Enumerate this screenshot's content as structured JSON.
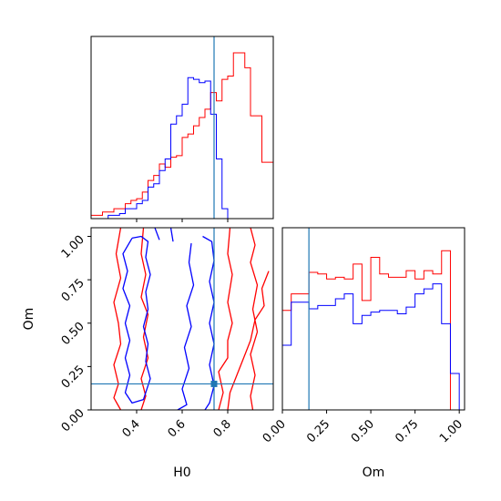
{
  "colors": {
    "series_a": "#ff0000",
    "series_b": "#0000ff",
    "truth": "#1f77b4",
    "frame": "#000000"
  },
  "chart_data": [
    {
      "type": "histogram",
      "panel": "H0 marginal (top-left)",
      "xlim": [
        0.2,
        1.0
      ],
      "x_ticks": [
        0.4,
        0.6,
        0.8
      ],
      "show_x_tick_labels": false,
      "show_y_ticks": false,
      "bin_edges": [
        0.2,
        0.225,
        0.25,
        0.275,
        0.3,
        0.325,
        0.35,
        0.375,
        0.4,
        0.425,
        0.45,
        0.475,
        0.5,
        0.525,
        0.55,
        0.575,
        0.6,
        0.625,
        0.65,
        0.675,
        0.7,
        0.725,
        0.75,
        0.775,
        0.8,
        0.825,
        0.85,
        0.875,
        0.9,
        0.925,
        0.95,
        0.975,
        1.0
      ],
      "series": [
        {
          "color": "#ff0000",
          "values": [
            0.02,
            0.02,
            0.04,
            0.04,
            0.06,
            0.06,
            0.09,
            0.11,
            0.12,
            0.16,
            0.23,
            0.26,
            0.33,
            0.31,
            0.37,
            0.38,
            0.49,
            0.51,
            0.56,
            0.61,
            0.66,
            0.76,
            0.71,
            0.84,
            0.86,
            1.0,
            1.0,
            0.91,
            0.62,
            0.62,
            0.34,
            0.34
          ]
        },
        {
          "color": "#0000ff",
          "values": [
            0.0,
            0.0,
            0.0,
            0.02,
            0.02,
            0.03,
            0.06,
            0.06,
            0.09,
            0.11,
            0.19,
            0.21,
            0.29,
            0.36,
            0.57,
            0.62,
            0.69,
            0.85,
            0.84,
            0.82,
            0.83,
            0.63,
            0.36,
            0.06,
            0.0,
            0.0,
            0.0,
            0.0,
            0.0,
            0.0,
            0.0,
            0.0
          ]
        }
      ],
      "truth_x": 0.74
    },
    {
      "type": "contour",
      "panel": "H0 vs Om (bottom-left)",
      "xlabel": "H0",
      "ylabel": "Om",
      "xlim": [
        0.2,
        1.0
      ],
      "ylim": [
        0.0,
        1.05
      ],
      "x_ticks": [
        0.4,
        0.6,
        0.8
      ],
      "x_tick_labels": [
        "0.4",
        "0.6",
        "0.8"
      ],
      "y_ticks": [
        0.0,
        0.25,
        0.5,
        0.75,
        1.0
      ],
      "y_tick_labels": [
        "0.00",
        "0.25",
        "0.50",
        "0.75",
        "1.00"
      ],
      "series": [
        {
          "color": "#ff0000",
          "contours": [
            [
              [
                0.33,
                1.05
              ],
              [
                0.31,
                0.9
              ],
              [
                0.33,
                0.76
              ],
              [
                0.3,
                0.62
              ],
              [
                0.32,
                0.5
              ],
              [
                0.33,
                0.38
              ],
              [
                0.3,
                0.26
              ],
              [
                0.32,
                0.15
              ],
              [
                0.3,
                0.07
              ],
              [
                0.33,
                0.0
              ]
            ],
            [
              [
                0.9,
                1.05
              ],
              [
                0.92,
                0.95
              ],
              [
                0.9,
                0.85
              ],
              [
                0.93,
                0.72
              ],
              [
                0.91,
                0.58
              ],
              [
                0.93,
                0.45
              ],
              [
                0.9,
                0.32
              ],
              [
                0.92,
                0.2
              ],
              [
                0.9,
                0.08
              ],
              [
                0.91,
                0.0
              ]
            ],
            [
              [
                0.81,
                1.05
              ],
              [
                0.8,
                0.9
              ],
              [
                0.82,
                0.78
              ],
              [
                0.8,
                0.62
              ],
              [
                0.82,
                0.5
              ],
              [
                0.8,
                0.4
              ],
              [
                0.8,
                0.3
              ],
              [
                0.76,
                0.22
              ],
              [
                0.78,
                0.1
              ],
              [
                0.76,
                0.0
              ]
            ],
            [
              [
                0.98,
                0.8
              ],
              [
                0.95,
                0.7
              ],
              [
                0.96,
                0.6
              ],
              [
                0.92,
                0.52
              ],
              [
                0.9,
                0.4
              ],
              [
                0.87,
                0.3
              ],
              [
                0.84,
                0.2
              ],
              [
                0.81,
                0.1
              ],
              [
                0.8,
                0.0
              ]
            ],
            [
              [
                0.43,
                1.05
              ],
              [
                0.42,
                0.9
              ],
              [
                0.44,
                0.78
              ],
              [
                0.42,
                0.65
              ],
              [
                0.45,
                0.55
              ],
              [
                0.43,
                0.42
              ],
              [
                0.45,
                0.3
              ],
              [
                0.42,
                0.18
              ],
              [
                0.44,
                0.08
              ],
              [
                0.42,
                0.0
              ]
            ]
          ]
        },
        {
          "color": "#0000ff",
          "contours": [
            [
              [
                0.38,
                0.99
              ],
              [
                0.42,
                1.0
              ],
              [
                0.45,
                0.97
              ],
              [
                0.44,
                0.88
              ],
              [
                0.46,
                0.78
              ],
              [
                0.44,
                0.68
              ],
              [
                0.45,
                0.58
              ],
              [
                0.43,
                0.48
              ],
              [
                0.45,
                0.38
              ],
              [
                0.44,
                0.28
              ],
              [
                0.46,
                0.18
              ],
              [
                0.43,
                0.06
              ],
              [
                0.38,
                0.04
              ],
              [
                0.35,
                0.1
              ],
              [
                0.37,
                0.2
              ],
              [
                0.35,
                0.3
              ],
              [
                0.37,
                0.4
              ],
              [
                0.35,
                0.5
              ],
              [
                0.37,
                0.6
              ],
              [
                0.34,
                0.7
              ],
              [
                0.36,
                0.8
              ],
              [
                0.34,
                0.9
              ],
              [
                0.38,
                0.99
              ]
            ],
            [
              [
                0.64,
                0.96
              ],
              [
                0.63,
                0.85
              ],
              [
                0.65,
                0.72
              ],
              [
                0.62,
                0.6
              ],
              [
                0.64,
                0.48
              ],
              [
                0.61,
                0.36
              ],
              [
                0.63,
                0.24
              ],
              [
                0.6,
                0.12
              ],
              [
                0.62,
                0.03
              ],
              [
                0.58,
                0.0
              ]
            ],
            [
              [
                0.69,
                1.0
              ],
              [
                0.73,
                0.97
              ],
              [
                0.74,
                0.86
              ],
              [
                0.72,
                0.74
              ],
              [
                0.74,
                0.62
              ],
              [
                0.72,
                0.5
              ],
              [
                0.74,
                0.38
              ],
              [
                0.72,
                0.26
              ],
              [
                0.74,
                0.14
              ],
              [
                0.72,
                0.04
              ],
              [
                0.7,
                0.0
              ]
            ],
            [
              [
                0.55,
                1.05
              ],
              [
                0.56,
                0.97
              ]
            ],
            [
              [
                0.48,
                1.05
              ],
              [
                0.5,
                0.98
              ]
            ]
          ]
        }
      ],
      "truth_x": 0.74,
      "truth_y": 0.15
    },
    {
      "type": "histogram",
      "panel": "Om marginal (bottom-right)",
      "xlabel": "Om",
      "xlim": [
        0.0,
        1.03
      ],
      "x_ticks": [
        0.0,
        0.25,
        0.5,
        0.75,
        1.0
      ],
      "x_tick_labels": [
        "0.00",
        "0.25",
        "0.50",
        "0.75",
        "1.00"
      ],
      "show_y_ticks": false,
      "bin_edges": [
        0.0,
        0.05,
        0.1,
        0.15,
        0.2,
        0.25,
        0.3,
        0.35,
        0.4,
        0.45,
        0.5,
        0.55,
        0.6,
        0.65,
        0.7,
        0.75,
        0.8,
        0.85,
        0.9,
        0.95,
        1.0
      ],
      "series": [
        {
          "color": "#ff0000",
          "values": [
            0.6,
            0.7,
            0.7,
            0.83,
            0.82,
            0.79,
            0.8,
            0.79,
            0.88,
            0.66,
            0.92,
            0.82,
            0.8,
            0.8,
            0.84,
            0.79,
            0.84,
            0.82,
            0.96,
            0.0
          ]
        },
        {
          "color": "#0000ff",
          "values": [
            0.39,
            0.65,
            0.65,
            0.61,
            0.63,
            0.63,
            0.67,
            0.7,
            0.52,
            0.57,
            0.59,
            0.6,
            0.6,
            0.58,
            0.62,
            0.7,
            0.73,
            0.76,
            0.52,
            0.22
          ]
        }
      ],
      "truth_x": 0.15
    }
  ]
}
